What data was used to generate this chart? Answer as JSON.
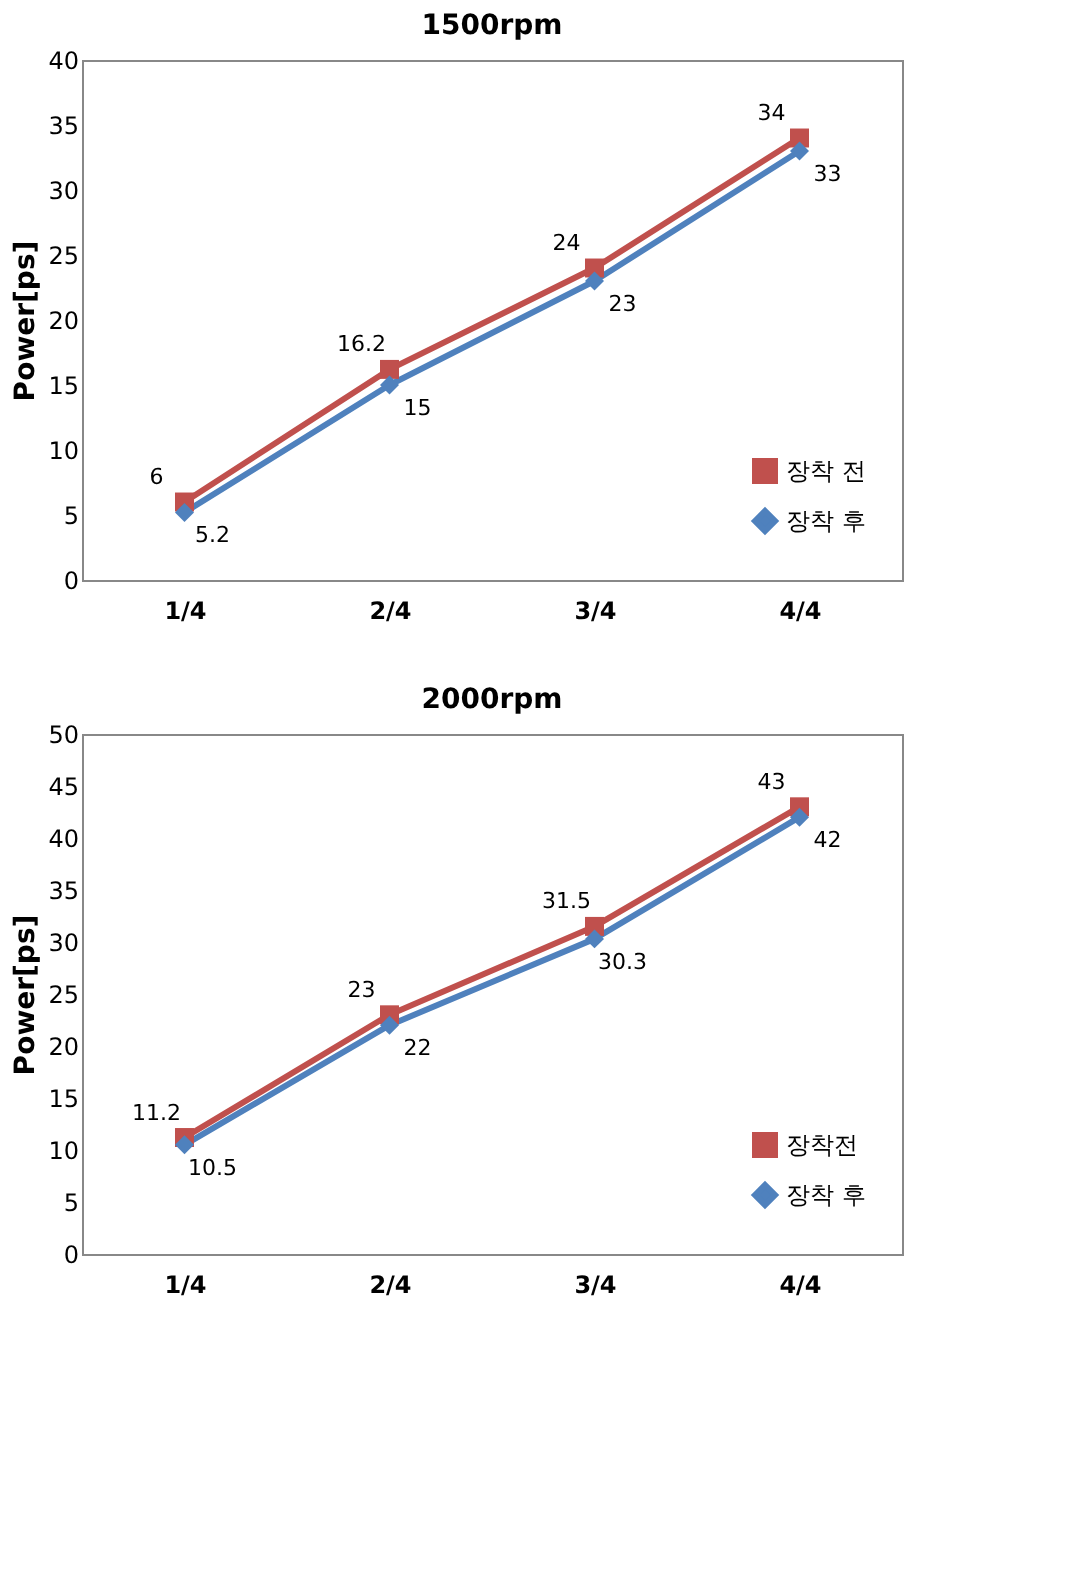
{
  "chart_data": [
    {
      "type": "line",
      "title": "1500rpm",
      "ylabel": "Power[ps]",
      "categories": [
        "1/4",
        "2/4",
        "3/4",
        "4/4"
      ],
      "ylim": [
        0,
        40
      ],
      "yticks": [
        0,
        5,
        10,
        15,
        20,
        25,
        30,
        35,
        40
      ],
      "grid": false,
      "legend": "bottom right",
      "data_labels": true,
      "series": [
        {
          "name": "장착 전",
          "color": "#c0504d",
          "marker": "square",
          "values": [
            6,
            16.2,
            24,
            34
          ]
        },
        {
          "name": "장착 후",
          "color": "#4f81bd",
          "marker": "diamond",
          "values": [
            5.2,
            15,
            23,
            33
          ]
        }
      ]
    },
    {
      "type": "line",
      "title": "2000rpm",
      "ylabel": "Power[ps]",
      "categories": [
        "1/4",
        "2/4",
        "3/4",
        "4/4"
      ],
      "ylim": [
        0,
        50
      ],
      "yticks": [
        0,
        5,
        10,
        15,
        20,
        25,
        30,
        35,
        40,
        45,
        50
      ],
      "grid": false,
      "legend": "bottom right",
      "data_labels": true,
      "series": [
        {
          "name": "장착전",
          "color": "#c0504d",
          "marker": "square",
          "values": [
            11.2,
            23,
            31.5,
            43
          ]
        },
        {
          "name": "장착 후",
          "color": "#4f81bd",
          "marker": "diamond",
          "values": [
            10.5,
            22,
            30.3,
            42
          ]
        }
      ]
    }
  ]
}
